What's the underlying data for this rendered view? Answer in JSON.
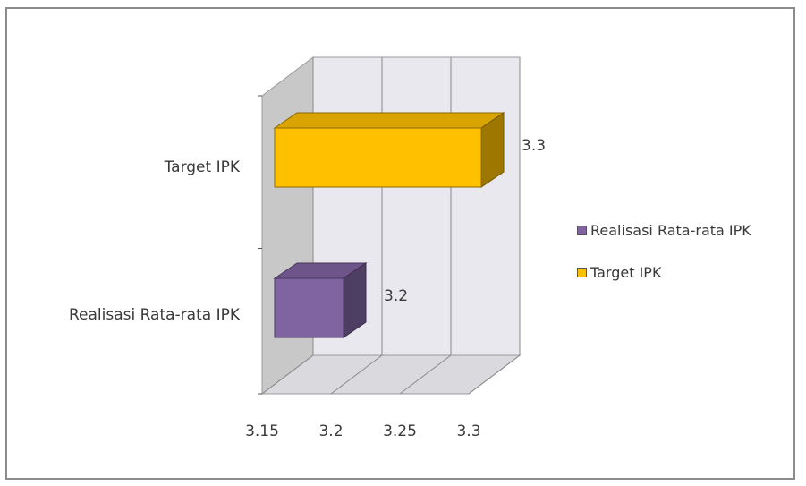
{
  "chart_data": {
    "type": "bar",
    "orientation": "horizontal",
    "style": "3d",
    "categories": [
      "Realisasi Rata-rata IPK",
      "Target IPK"
    ],
    "series": [
      {
        "name": "Realisasi Rata-rata IPK",
        "category": "Realisasi Rata-rata IPK",
        "value": 3.2,
        "color": "#8064a2"
      },
      {
        "name": "Target IPK",
        "category": "Target IPK",
        "value": 3.3,
        "color": "#ffc000"
      }
    ],
    "data_labels": [
      "3.2",
      "3.3"
    ],
    "x_ticks": [
      "3.15",
      "3.2",
      "3.25",
      "3.3"
    ],
    "xlim": [
      3.15,
      3.3
    ],
    "grid": true,
    "legend_position": "right"
  }
}
